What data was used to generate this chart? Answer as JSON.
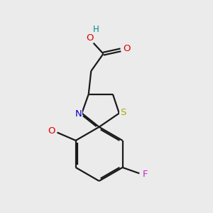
{
  "bg": "#ebebeb",
  "bond_color": "#1a1a1a",
  "lw": 1.6,
  "dbo": 0.055,
  "colors": {
    "H": "#008b8b",
    "O": "#dd0000",
    "N": "#0000cc",
    "S": "#aaaa00",
    "F": "#cc22cc",
    "C": "#1a1a1a"
  },
  "xlim": [
    0,
    10
  ],
  "ylim": [
    0,
    10
  ]
}
